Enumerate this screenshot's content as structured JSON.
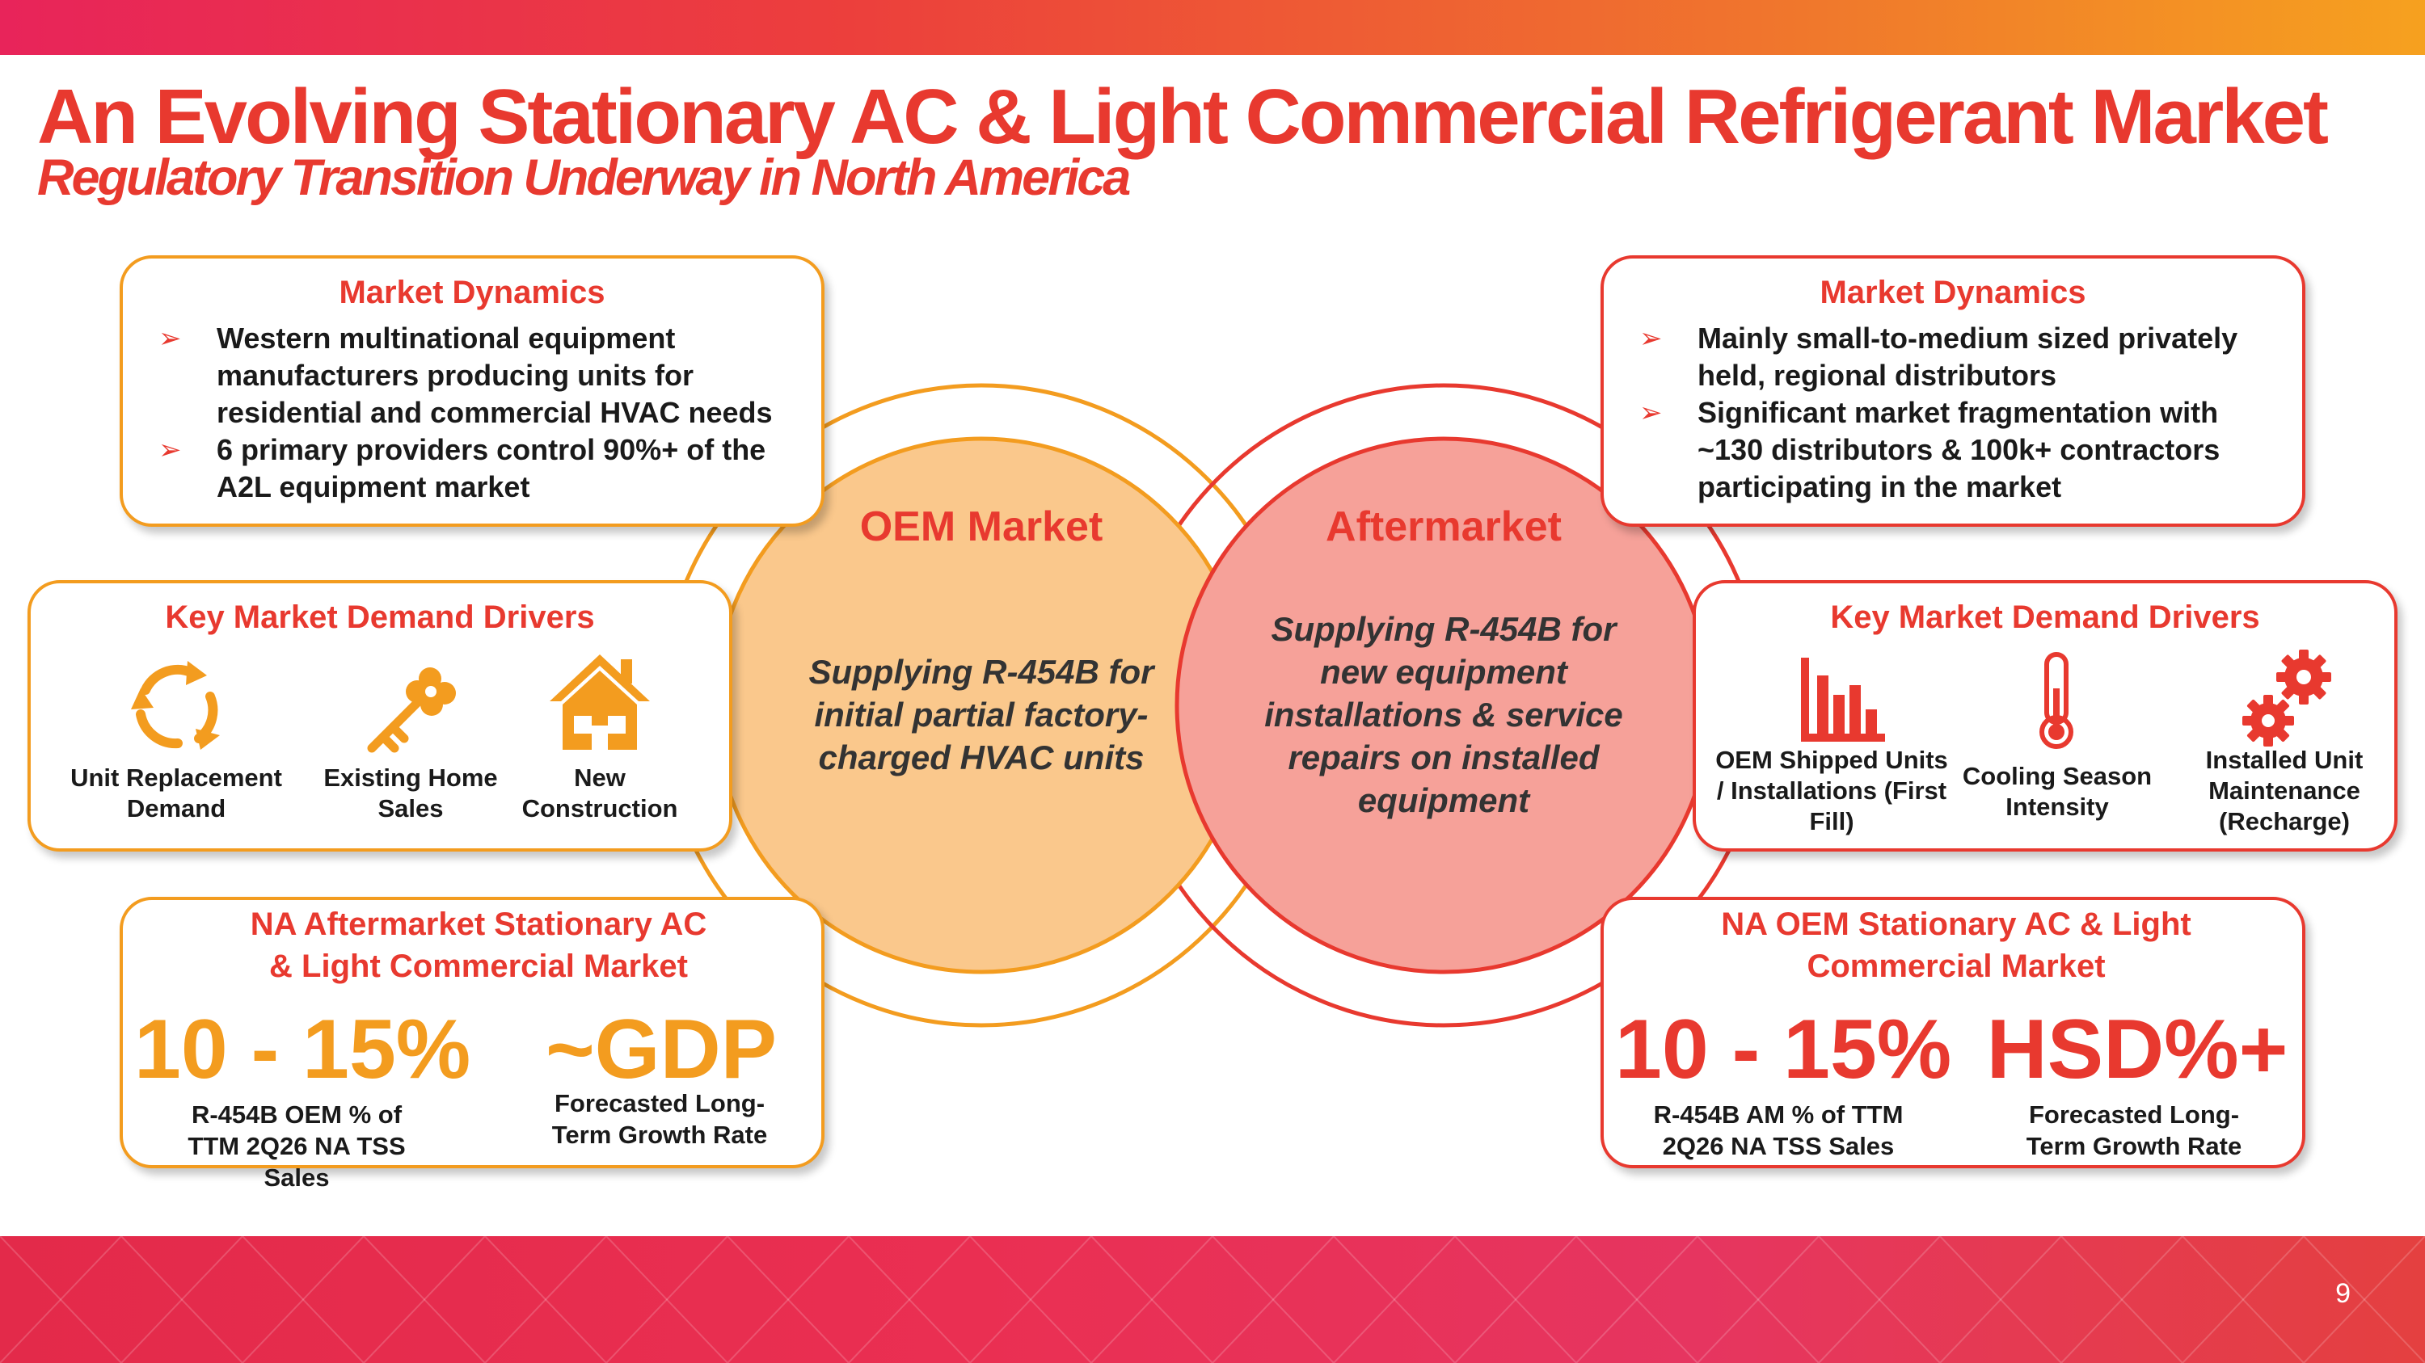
{
  "header": {
    "title": "An Evolving Stationary AC & Light Commercial Refrigerant Market",
    "subtitle": "Regulatory Transition Underway in North America"
  },
  "colors": {
    "brand_red": "#e8392f",
    "brand_orange": "#f39c1f",
    "oem_circle_fill": "#fac88c",
    "aftermarket_circle_fill": "#f6a199"
  },
  "oem": {
    "circle": {
      "heading": "OEM Market",
      "body": "Supplying R-454B for initial partial factory-charged HVAC units"
    },
    "market_dynamics": {
      "title": "Market Dynamics",
      "bullets": [
        "Western multinational equipment manufacturers producing units for residential and commercial HVAC needs",
        "6 primary providers control 90%+ of the A2L equipment market"
      ]
    },
    "demand_drivers": {
      "title": "Key Market Demand Drivers",
      "items": [
        {
          "label": "Unit Replacement Demand",
          "icon": "cycle-arrows-icon"
        },
        {
          "label": "Existing Home Sales",
          "icon": "key-icon"
        },
        {
          "label": "New Construction",
          "icon": "house-icon"
        }
      ]
    },
    "stats": {
      "title": "NA Aftermarket Stationary AC & Light Commercial Market",
      "left_value": "10 - 15%",
      "left_label": "R-454B OEM % of TTM 2Q26 NA TSS Sales",
      "right_value": "~GDP",
      "right_label": "Forecasted Long-Term Growth Rate"
    }
  },
  "aftermarket": {
    "circle": {
      "heading": "Aftermarket",
      "body": "Supplying R-454B for new equipment installations & service repairs on installed equipment"
    },
    "market_dynamics": {
      "title": "Market Dynamics",
      "bullets": [
        "Mainly small-to-medium sized privately held, regional distributors",
        "Significant market fragmentation with ~130 distributors & 100k+ contractors participating in the market"
      ]
    },
    "demand_drivers": {
      "title": "Key Market Demand Drivers",
      "items": [
        {
          "label": "OEM Shipped Units / Installations (First Fill)",
          "icon": "bar-chart-icon"
        },
        {
          "label": "Cooling Season Intensity",
          "icon": "thermometer-icon"
        },
        {
          "label": "Installed Unit Maintenance (Recharge)",
          "icon": "gears-icon"
        }
      ]
    },
    "stats": {
      "title": "NA OEM Stationary AC & Light Commercial Market",
      "left_value": "10 - 15%",
      "left_label": "R-454B AM % of TTM 2Q26 NA TSS Sales",
      "right_value": "HSD%+",
      "right_label": "Forecasted Long-Term Growth Rate"
    }
  },
  "footer": {
    "page_number": "9"
  }
}
